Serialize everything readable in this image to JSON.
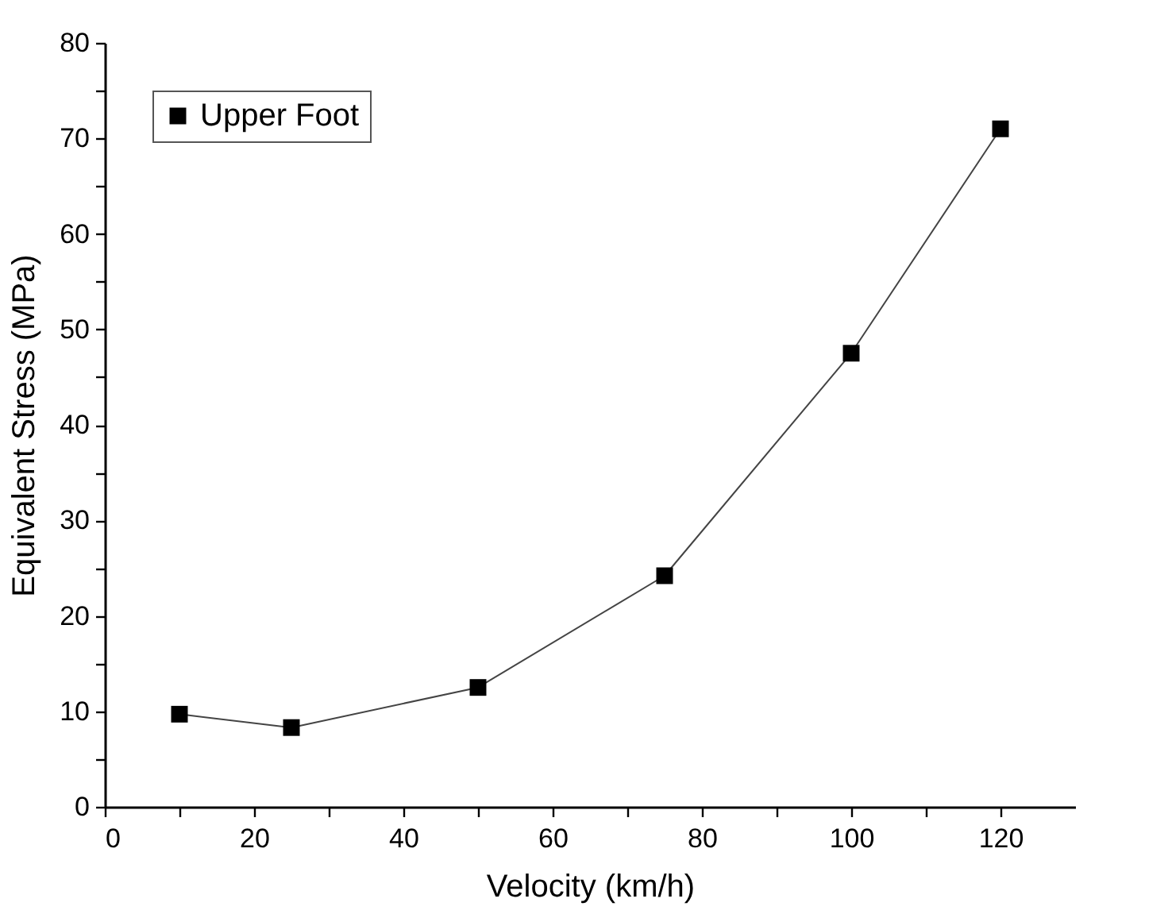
{
  "chart_data": {
    "type": "line",
    "xlabel": "Velocity (km/h)",
    "ylabel": "Equivalent Stress (MPa)",
    "x": [
      10,
      25,
      50,
      75,
      100,
      120
    ],
    "series": [
      {
        "name": "Upper Foot",
        "color": "#000000",
        "values": [
          9.7,
          8.3,
          12.5,
          24.2,
          47.5,
          71
        ]
      }
    ],
    "xlim": [
      0,
      130
    ],
    "xticks": [
      0,
      {
        "value": 10,
        "label": null
      },
      20,
      {
        "value": 30,
        "label": null
      },
      40,
      {
        "value": 50,
        "label": null
      },
      60,
      {
        "value": 70,
        "label": null
      },
      80,
      {
        "value": 90,
        "label": null
      },
      100,
      {
        "value": 110,
        "label": null
      },
      120
    ],
    "ylim": [
      0,
      80
    ],
    "yticks": [
      0,
      {
        "value": 5,
        "label": null
      },
      10,
      {
        "value": 15,
        "label": null
      },
      20,
      {
        "value": 25,
        "label": null
      },
      30,
      {
        "value": 35,
        "label": null
      },
      40,
      {
        "value": 45,
        "label": null
      },
      50,
      {
        "value": 55,
        "label": null
      },
      60,
      {
        "value": 65,
        "label": null
      },
      70,
      {
        "value": 75,
        "label": null
      },
      80
    ],
    "marker": "square",
    "line_style": "solid",
    "grid": false,
    "legend": "top left"
  }
}
